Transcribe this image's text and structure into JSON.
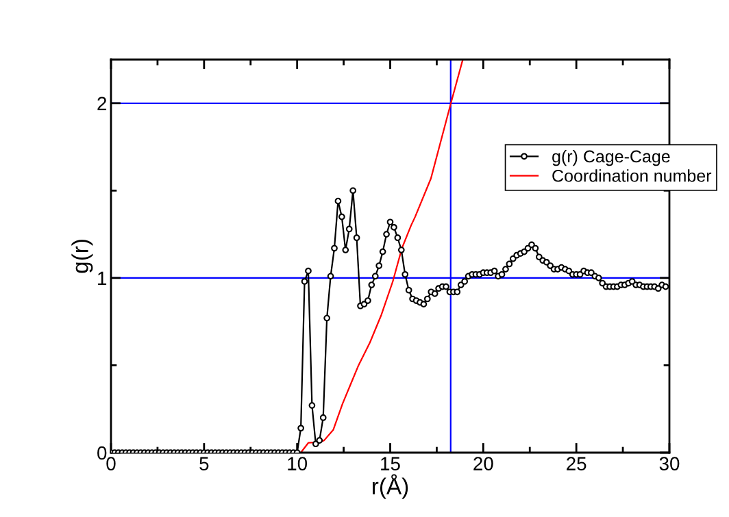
{
  "chart_data": {
    "type": "line",
    "xlabel": "r(Å)",
    "ylabel": "g(r)",
    "xlim": [
      0,
      30
    ],
    "ylim": [
      0,
      2.25
    ],
    "xticks": [
      0,
      {
        "value": 2.5,
        "label": null
      },
      5,
      {
        "value": 7.5,
        "label": null
      },
      10,
      {
        "value": 12.5,
        "label": null
      },
      15,
      {
        "value": 17.5,
        "label": null
      },
      20,
      {
        "value": 22.5,
        "label": null
      },
      25,
      {
        "value": 27.5,
        "label": null
      },
      30
    ],
    "yticks": [
      0,
      {
        "value": 0.5,
        "label": null
      },
      1,
      {
        "value": 1.5,
        "label": null
      },
      2
    ],
    "grid": false,
    "legend": "top right",
    "ref_lines": [
      {
        "axis": "y",
        "value": 1,
        "color": "#0000ff"
      },
      {
        "axis": "y",
        "value": 2,
        "color": "#0000ff"
      },
      {
        "axis": "x",
        "value": 18.25,
        "color": "#0000ff"
      }
    ],
    "series": [
      {
        "name": "g(r) Cage-Cage",
        "color": "#000000",
        "marker": "circle",
        "x": [
          0,
          0.2,
          0.4,
          0.6,
          0.8,
          1,
          1.2,
          1.4,
          1.6,
          1.8,
          2,
          2.2,
          2.4,
          2.6,
          2.8,
          3,
          3.2,
          3.4,
          3.6,
          3.8,
          4,
          4.2,
          4.4,
          4.6,
          4.8,
          5,
          5.2,
          5.4,
          5.6,
          5.8,
          6,
          6.2,
          6.4,
          6.6,
          6.8,
          7,
          7.2,
          7.4,
          7.6,
          7.8,
          8,
          8.2,
          8.4,
          8.6,
          8.8,
          9,
          9.2,
          9.4,
          9.6,
          9.8,
          10,
          10.2,
          10.4,
          10.6,
          10.8,
          11,
          11.2,
          11.4,
          11.6,
          11.8,
          12,
          12.2,
          12.4,
          12.6,
          12.8,
          13,
          13.2,
          13.4,
          13.6,
          13.8,
          14,
          14.2,
          14.4,
          14.6,
          14.8,
          15,
          15.2,
          15.4,
          15.6,
          15.8,
          16,
          16.2,
          16.4,
          16.6,
          16.8,
          17,
          17.2,
          17.4,
          17.6,
          17.8,
          18,
          18.2,
          18.4,
          18.6,
          18.8,
          19,
          19.2,
          19.4,
          19.6,
          19.8,
          20,
          20.2,
          20.4,
          20.6,
          20.8,
          21,
          21.2,
          21.4,
          21.6,
          21.8,
          22,
          22.2,
          22.4,
          22.6,
          22.8,
          23,
          23.2,
          23.4,
          23.6,
          23.8,
          24,
          24.2,
          24.4,
          24.6,
          24.8,
          25,
          25.2,
          25.4,
          25.6,
          25.8,
          26,
          26.2,
          26.4,
          26.6,
          26.8,
          27,
          27.2,
          27.4,
          27.6,
          27.8,
          28,
          28.2,
          28.4,
          28.6,
          28.8,
          29,
          29.2,
          29.4,
          29.6,
          29.8
        ],
        "values": [
          0,
          0,
          0,
          0,
          0,
          0,
          0,
          0,
          0,
          0,
          0,
          0,
          0,
          0,
          0,
          0,
          0,
          0,
          0,
          0,
          0,
          0,
          0,
          0,
          0,
          0,
          0,
          0,
          0,
          0,
          0,
          0,
          0,
          0,
          0,
          0,
          0,
          0,
          0,
          0,
          0,
          0,
          0,
          0,
          0,
          0,
          0,
          0,
          0,
          0,
          0,
          0.14,
          0.98,
          1.04,
          0.27,
          0.05,
          0.07,
          0.2,
          0.77,
          1.01,
          1.17,
          1.44,
          1.35,
          1.16,
          1.28,
          1.5,
          1.23,
          0.84,
          0.85,
          0.87,
          0.96,
          1.01,
          1.07,
          1.15,
          1.25,
          1.32,
          1.29,
          1.23,
          1.16,
          1.02,
          0.93,
          0.88,
          0.87,
          0.86,
          0.85,
          0.88,
          0.92,
          0.91,
          0.94,
          0.95,
          0.95,
          0.92,
          0.92,
          0.92,
          0.96,
          0.98,
          1.01,
          1.02,
          1.02,
          1.02,
          1.03,
          1.03,
          1.03,
          1.04,
          1.01,
          1.02,
          1.05,
          1.08,
          1.11,
          1.13,
          1.14,
          1.15,
          1.17,
          1.19,
          1.17,
          1.12,
          1.1,
          1.09,
          1.07,
          1.05,
          1.05,
          1.06,
          1.05,
          1.04,
          1.02,
          1.02,
          1.02,
          1.04,
          1.03,
          1.03,
          1.01,
          1,
          0.97,
          0.95,
          0.95,
          0.95,
          0.95,
          0.96,
          0.96,
          0.97,
          0.98,
          0.96,
          0.96,
          0.95,
          0.95,
          0.95,
          0.95,
          0.94,
          0.96,
          0.95
        ]
      },
      {
        "name": "Coordination number",
        "color": "#ff0000",
        "marker": "none",
        "x": [
          10.2,
          10.6,
          11.2,
          11.45,
          11.94,
          12.44,
          13.3,
          13.91,
          14.53,
          15.14,
          15.63,
          16.12,
          16.34,
          17.19,
          18.26,
          18.9
        ],
        "values": [
          0,
          0.056,
          0.06,
          0.07,
          0.13,
          0.28,
          0.5,
          0.63,
          0.79,
          0.98,
          1.17,
          1.3,
          1.35,
          1.57,
          2.0,
          2.25
        ]
      }
    ]
  }
}
